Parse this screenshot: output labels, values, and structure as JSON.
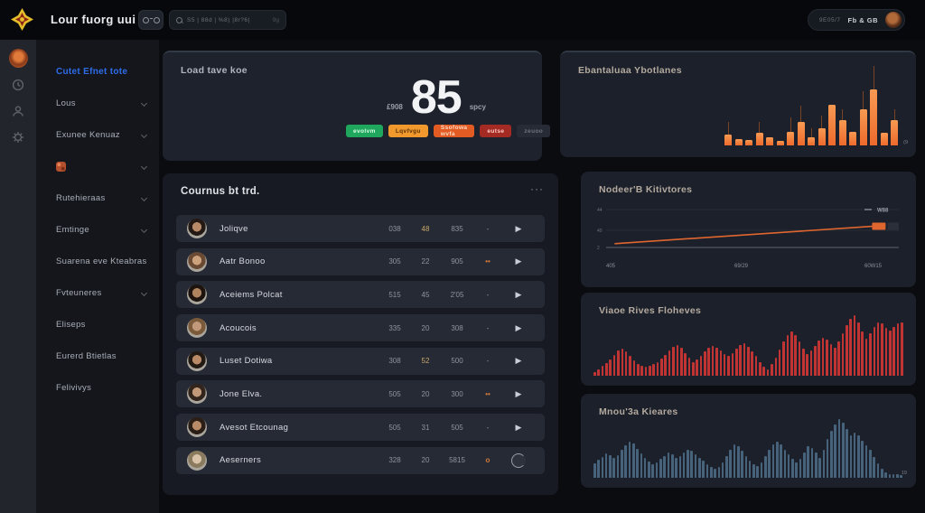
{
  "topbar": {
    "title": "Lour fuorg uui",
    "search": {
      "text": "S5 | 88d | %8) |8r?6|",
      "hint": "9g"
    },
    "user": {
      "meta": "9E05/7",
      "name": "Fb & GB"
    }
  },
  "sidebar": {
    "items": [
      {
        "label": "Cutet Efnet tote",
        "active": true,
        "chevron": false,
        "icon": false
      },
      {
        "label": "Lous",
        "active": false,
        "chevron": true,
        "icon": false
      },
      {
        "label": "Exunee Kenuaz",
        "active": false,
        "chevron": true,
        "icon": false
      },
      {
        "label": "",
        "active": false,
        "chevron": true,
        "icon": true
      },
      {
        "label": "Rutehieraas",
        "active": false,
        "chevron": true,
        "icon": false
      },
      {
        "label": "Emtinge",
        "active": false,
        "chevron": true,
        "icon": false
      },
      {
        "label": "Suarena eve Kteabrase",
        "active": false,
        "chevron": false,
        "icon": false
      },
      {
        "label": "Fvteuneres",
        "active": false,
        "chevron": true,
        "icon": false
      },
      {
        "label": "Eliseps",
        "active": false,
        "chevron": false,
        "icon": false
      },
      {
        "label": "Eurerd Btietlas",
        "active": false,
        "chevron": false,
        "icon": false
      },
      {
        "label": "Felivivys",
        "active": false,
        "chevron": false,
        "icon": false
      }
    ]
  },
  "score_card": {
    "title": "Load tave koe",
    "value": "85",
    "left_label": "£908",
    "right_label": "spcy",
    "badges": [
      {
        "label": "evolvm",
        "bg": "#1ea75d",
        "fg": "#dcffe9"
      },
      {
        "label": "Lqvfvgu",
        "bg": "#f2992d",
        "fg": "#5a3408"
      },
      {
        "label": "Ssofowa wvfa",
        "bg": "#e25b22",
        "fg": "#ffd9c2"
      },
      {
        "label": "eutse",
        "bg": "#a42a24",
        "fg": "#ffccc6"
      },
      {
        "label": "zeuoo",
        "bg": "#262b35",
        "fg": "#6d7480"
      }
    ]
  },
  "list_card": {
    "title": "Cournus bt trd.",
    "menu": "···",
    "rows": [
      {
        "name": "Joliqve",
        "c1": "038",
        "c2": "48",
        "c3": "835",
        "c4": "-",
        "c2_warm": true,
        "action": "play",
        "avatar": {
          "skin": "#b98a68",
          "hair": "#241a15"
        }
      },
      {
        "name": "Aatr Bonoo",
        "c1": "305",
        "c2": "22",
        "c3": "905",
        "c4": "••",
        "c2_warm": false,
        "action": "play",
        "avatar": {
          "skin": "#cba27c",
          "hair": "#6b4a33"
        }
      },
      {
        "name": "Aceiems Polcat",
        "c1": "515",
        "c2": "45",
        "c3": "2'05",
        "c4": "-",
        "c2_warm": false,
        "action": "play",
        "avatar": {
          "skin": "#b0835f",
          "hair": "#1d1410"
        }
      },
      {
        "name": "Acoucois",
        "c1": "335",
        "c2": "20",
        "c3": "308",
        "c4": "-",
        "c2_warm": false,
        "action": "play",
        "avatar": {
          "skin": "#c2997a",
          "hair": "#7a5a3a"
        }
      },
      {
        "name": "Luset Dotiwa",
        "c1": "308",
        "c2": "52",
        "c3": "500",
        "c4": "-",
        "c2_warm": true,
        "action": "play",
        "avatar": {
          "skin": "#b98a68",
          "hair": "#241a14"
        }
      },
      {
        "name": "Jone Elva.",
        "c1": "505",
        "c2": "20",
        "c3": "300",
        "c4": "••",
        "c2_warm": false,
        "action": "play",
        "avatar": {
          "skin": "#c29a7a",
          "hair": "#33241c"
        }
      },
      {
        "name": "Avesot Etcounag",
        "c1": "505",
        "c2": "31",
        "c3": "505",
        "c4": "-",
        "c2_warm": false,
        "action": "play",
        "avatar": {
          "skin": "#b98a68",
          "hair": "#2a1e16"
        }
      },
      {
        "name": "Aeserners",
        "c1": "328",
        "c2": "20",
        "c3": "5815",
        "c4": "o",
        "c2_warm": false,
        "action": "refresh",
        "avatar": {
          "skin": "#d8c3a8",
          "hair": "#8a7a5e"
        }
      }
    ]
  },
  "chart_data": [
    {
      "id": "evaluation",
      "type": "bar",
      "title": "Ebantaluaa Ybotlanes",
      "values": [
        20,
        12,
        10,
        22,
        15,
        8,
        25,
        42,
        15,
        30,
        72,
        45,
        25,
        65,
        100,
        22,
        45
      ],
      "whiskers": [
        14,
        0,
        0,
        12,
        0,
        0,
        16,
        18,
        10,
        14,
        0,
        12,
        0,
        20,
        26,
        0,
        12
      ],
      "ghosts": [
        0,
        0,
        0,
        0,
        0,
        0,
        0,
        55,
        0,
        0,
        85,
        0,
        0,
        78,
        100,
        0,
        60
      ],
      "bar_color": "#ee6a2c",
      "end_label": "(9",
      "ylim": [
        0,
        100
      ],
      "grid": false,
      "legend": "none"
    },
    {
      "id": "modern",
      "type": "line",
      "title": "Nodeer'B Kitivtores",
      "yticks": [
        "44",
        "40",
        "2"
      ],
      "xticks": [
        "405",
        "69/29",
        "60W15"
      ],
      "points_pct": [
        [
          3,
          10
        ],
        [
          95,
          56
        ]
      ],
      "end_label": "W88",
      "line_color": "#e0662f",
      "grid": true,
      "legend": "top-right"
    },
    {
      "id": "raves",
      "type": "bar",
      "title": "Viaoe Rives Floheves",
      "values": [
        5,
        8,
        12,
        16,
        20,
        26,
        31,
        33,
        30,
        25,
        19,
        15,
        12,
        11,
        12,
        14,
        17,
        21,
        26,
        31,
        36,
        38,
        34,
        28,
        22,
        17,
        20,
        25,
        30,
        34,
        37,
        35,
        31,
        27,
        24,
        28,
        33,
        38,
        40,
        36,
        30,
        24,
        17,
        11,
        8,
        14,
        22,
        32,
        42,
        50,
        55,
        50,
        42,
        33,
        27,
        31,
        37,
        43,
        47,
        44,
        39,
        35,
        42,
        52,
        62,
        70,
        75,
        66,
        54,
        46,
        52,
        60,
        66,
        64,
        59,
        56,
        60,
        64,
        66
      ],
      "bar_color": "#c13434",
      "end_label": "",
      "ylim": [
        0,
        80
      ],
      "grid": false,
      "legend": "none"
    },
    {
      "id": "minor",
      "type": "bar",
      "title": "Mnou'3a Kieares",
      "values": [
        18,
        22,
        26,
        30,
        28,
        24,
        28,
        34,
        40,
        44,
        42,
        36,
        30,
        24,
        20,
        17,
        19,
        23,
        27,
        31,
        29,
        25,
        27,
        31,
        35,
        33,
        29,
        25,
        21,
        17,
        13,
        11,
        13,
        19,
        27,
        35,
        41,
        39,
        33,
        27,
        21,
        17,
        15,
        19,
        27,
        35,
        41,
        45,
        41,
        35,
        29,
        23,
        19,
        23,
        31,
        39,
        37,
        31,
        25,
        35,
        48,
        58,
        66,
        72,
        68,
        60,
        52,
        56,
        52,
        46,
        40,
        34,
        26,
        18,
        11,
        7,
        5,
        4,
        4,
        3
      ],
      "bar_color": "#47627b",
      "end_label": "19",
      "ylim": [
        0,
        80
      ],
      "grid": false,
      "legend": "none"
    }
  ]
}
